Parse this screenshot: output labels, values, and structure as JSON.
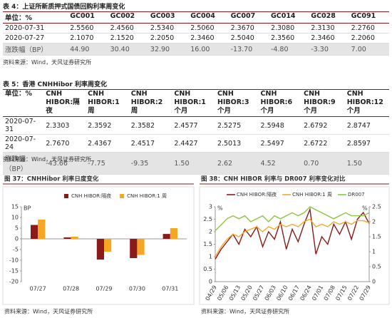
{
  "table1": {
    "title": "表 4：上证所新质押式国债回购利率周变化",
    "header": [
      "单位：%",
      "GC001",
      "GC002",
      "GC003",
      "GC004",
      "GC007",
      "GC014",
      "GC028",
      "GC091"
    ],
    "rows": [
      [
        "2020-07-31",
        "2.5560",
        "2.4560",
        "2.5340",
        "2.5060",
        "2.3670",
        "2.3080",
        "2.3130",
        "2.2760"
      ],
      [
        "2020-07-27",
        "2.1070",
        "2.1520",
        "2.2050",
        "2.3460",
        "2.5040",
        "2.3560",
        "2.3460",
        "2.2060"
      ],
      [
        "涨跌幅（BP）",
        "44.90",
        "30.40",
        "32.90",
        "16.00",
        "-13.70",
        "-4.80",
        "-3.30",
        "7.00"
      ]
    ],
    "source": "资料来源：Wind，天风证券研究所"
  },
  "table2": {
    "title": "表 5：香港 CNHHibor 利率周变化",
    "header": [
      "单位：%",
      "CNH HIBOR:隔夜",
      "CNH HIBOR:1 周",
      "CNH HIBOR:2 周",
      "CNH HIBOR:1 个月",
      "CNH HIBOR:3 个月",
      "CNH HIBOR:6 个月",
      "CNH HIBOR:9 个月",
      "CNH HIBOR:12 个月"
    ],
    "rows": [
      [
        "2020-07-31",
        "2.3303",
        "2.3592",
        "2.3582",
        "2.4577",
        "2.5275",
        "2.5948",
        "2.6792",
        "2.8747"
      ],
      [
        "2020-07-24",
        "2.7670",
        "2.4367",
        "2.4517",
        "2.4427",
        "2.5013",
        "2.5497",
        "2.6722",
        "2.8597"
      ],
      [
        "涨跌幅（BP）",
        "-43.66",
        "-7.75",
        "-9.35",
        "1.50",
        "2.62",
        "4.52",
        "0.70",
        "1.50"
      ]
    ],
    "source": "资料来源：Wind，天风证券研究所"
  },
  "chart_data": [
    {
      "type": "bar",
      "title": "图 37：CNHHibor 利率日度变化",
      "y_label": "BP",
      "categories": [
        "07/27",
        "07/28",
        "07/29",
        "07/30",
        "07/31"
      ],
      "series": [
        {
          "name": "CNH HIBOR:隔夜",
          "color": "#8b1a1a",
          "values": [
            6.5,
            0.7,
            -9.7,
            -9.0,
            2.3
          ]
        },
        {
          "name": "CNH HIBOR:1 周",
          "color": "#f5a623",
          "values": [
            9.0,
            1.0,
            -6.0,
            -7.5,
            5.0
          ]
        }
      ],
      "ylim": [
        -20,
        15
      ],
      "yticks": [
        -20,
        -15,
        -10,
        -5,
        0,
        5,
        10,
        15
      ],
      "source": "资料来源：Wind，天风证券研究所"
    },
    {
      "type": "line",
      "title": "图 38：CNH HIBOR 利率与 DR007 利率变化对比",
      "y_label": "%",
      "y2_label": "%",
      "categories": [
        "04/29",
        null,
        "05/06",
        null,
        "05/13",
        null,
        "05/20",
        null,
        "05/27",
        null,
        "06/03",
        null,
        "06/10",
        null,
        "06/17",
        null,
        "06/24",
        null,
        "07/01",
        null,
        "07/08",
        null,
        "07/15",
        null,
        "07/22",
        null,
        "07/29"
      ],
      "series": [
        {
          "name": "CNH HIBOR:隔夜",
          "color": "#8b1a1a",
          "values": [
            0.9,
            1.3,
            1.6,
            1.9,
            1.5,
            2.1,
            1.8,
            2.2,
            1.4,
            2.0,
            1.7,
            2.4,
            1.3,
            2.1,
            1.6,
            2.3,
            2.9,
            1.1,
            1.8,
            1.5,
            2.3,
            1.9,
            2.4,
            1.7,
            2.5,
            2.77,
            2.33
          ]
        },
        {
          "name": "CNH HIBOR:1 周",
          "color": "#f5a623",
          "values": [
            1.0,
            1.4,
            1.7,
            1.9,
            1.8,
            2.0,
            2.1,
            2.2,
            2.0,
            2.2,
            2.1,
            2.3,
            2.2,
            2.3,
            2.2,
            2.4,
            2.5,
            2.2,
            2.3,
            2.2,
            2.4,
            2.3,
            2.4,
            2.3,
            2.45,
            2.44,
            2.36
          ]
        },
        {
          "name": "DR007",
          "color": "#8cc63f",
          "axis": "y2",
          "values": [
            1.7,
            1.9,
            2.1,
            2.2,
            2.1,
            2.2,
            2.0,
            2.1,
            2.2,
            2.0,
            2.2,
            2.1,
            2.2,
            2.3,
            2.2,
            2.3,
            2.5,
            2.4,
            2.3,
            2.2,
            2.1,
            2.2,
            2.3,
            2.2,
            2.2,
            2.2,
            2.3
          ]
        }
      ],
      "ylim": [
        0,
        3
      ],
      "yticks": [
        0,
        0.5,
        1,
        1.5,
        2,
        2.5,
        3
      ],
      "y2lim": [
        0,
        2.5
      ],
      "y2ticks": [
        0,
        0.5,
        1,
        1.5,
        2,
        2.5
      ],
      "source": "资料来源：Wind，天风证券研究所"
    }
  ]
}
